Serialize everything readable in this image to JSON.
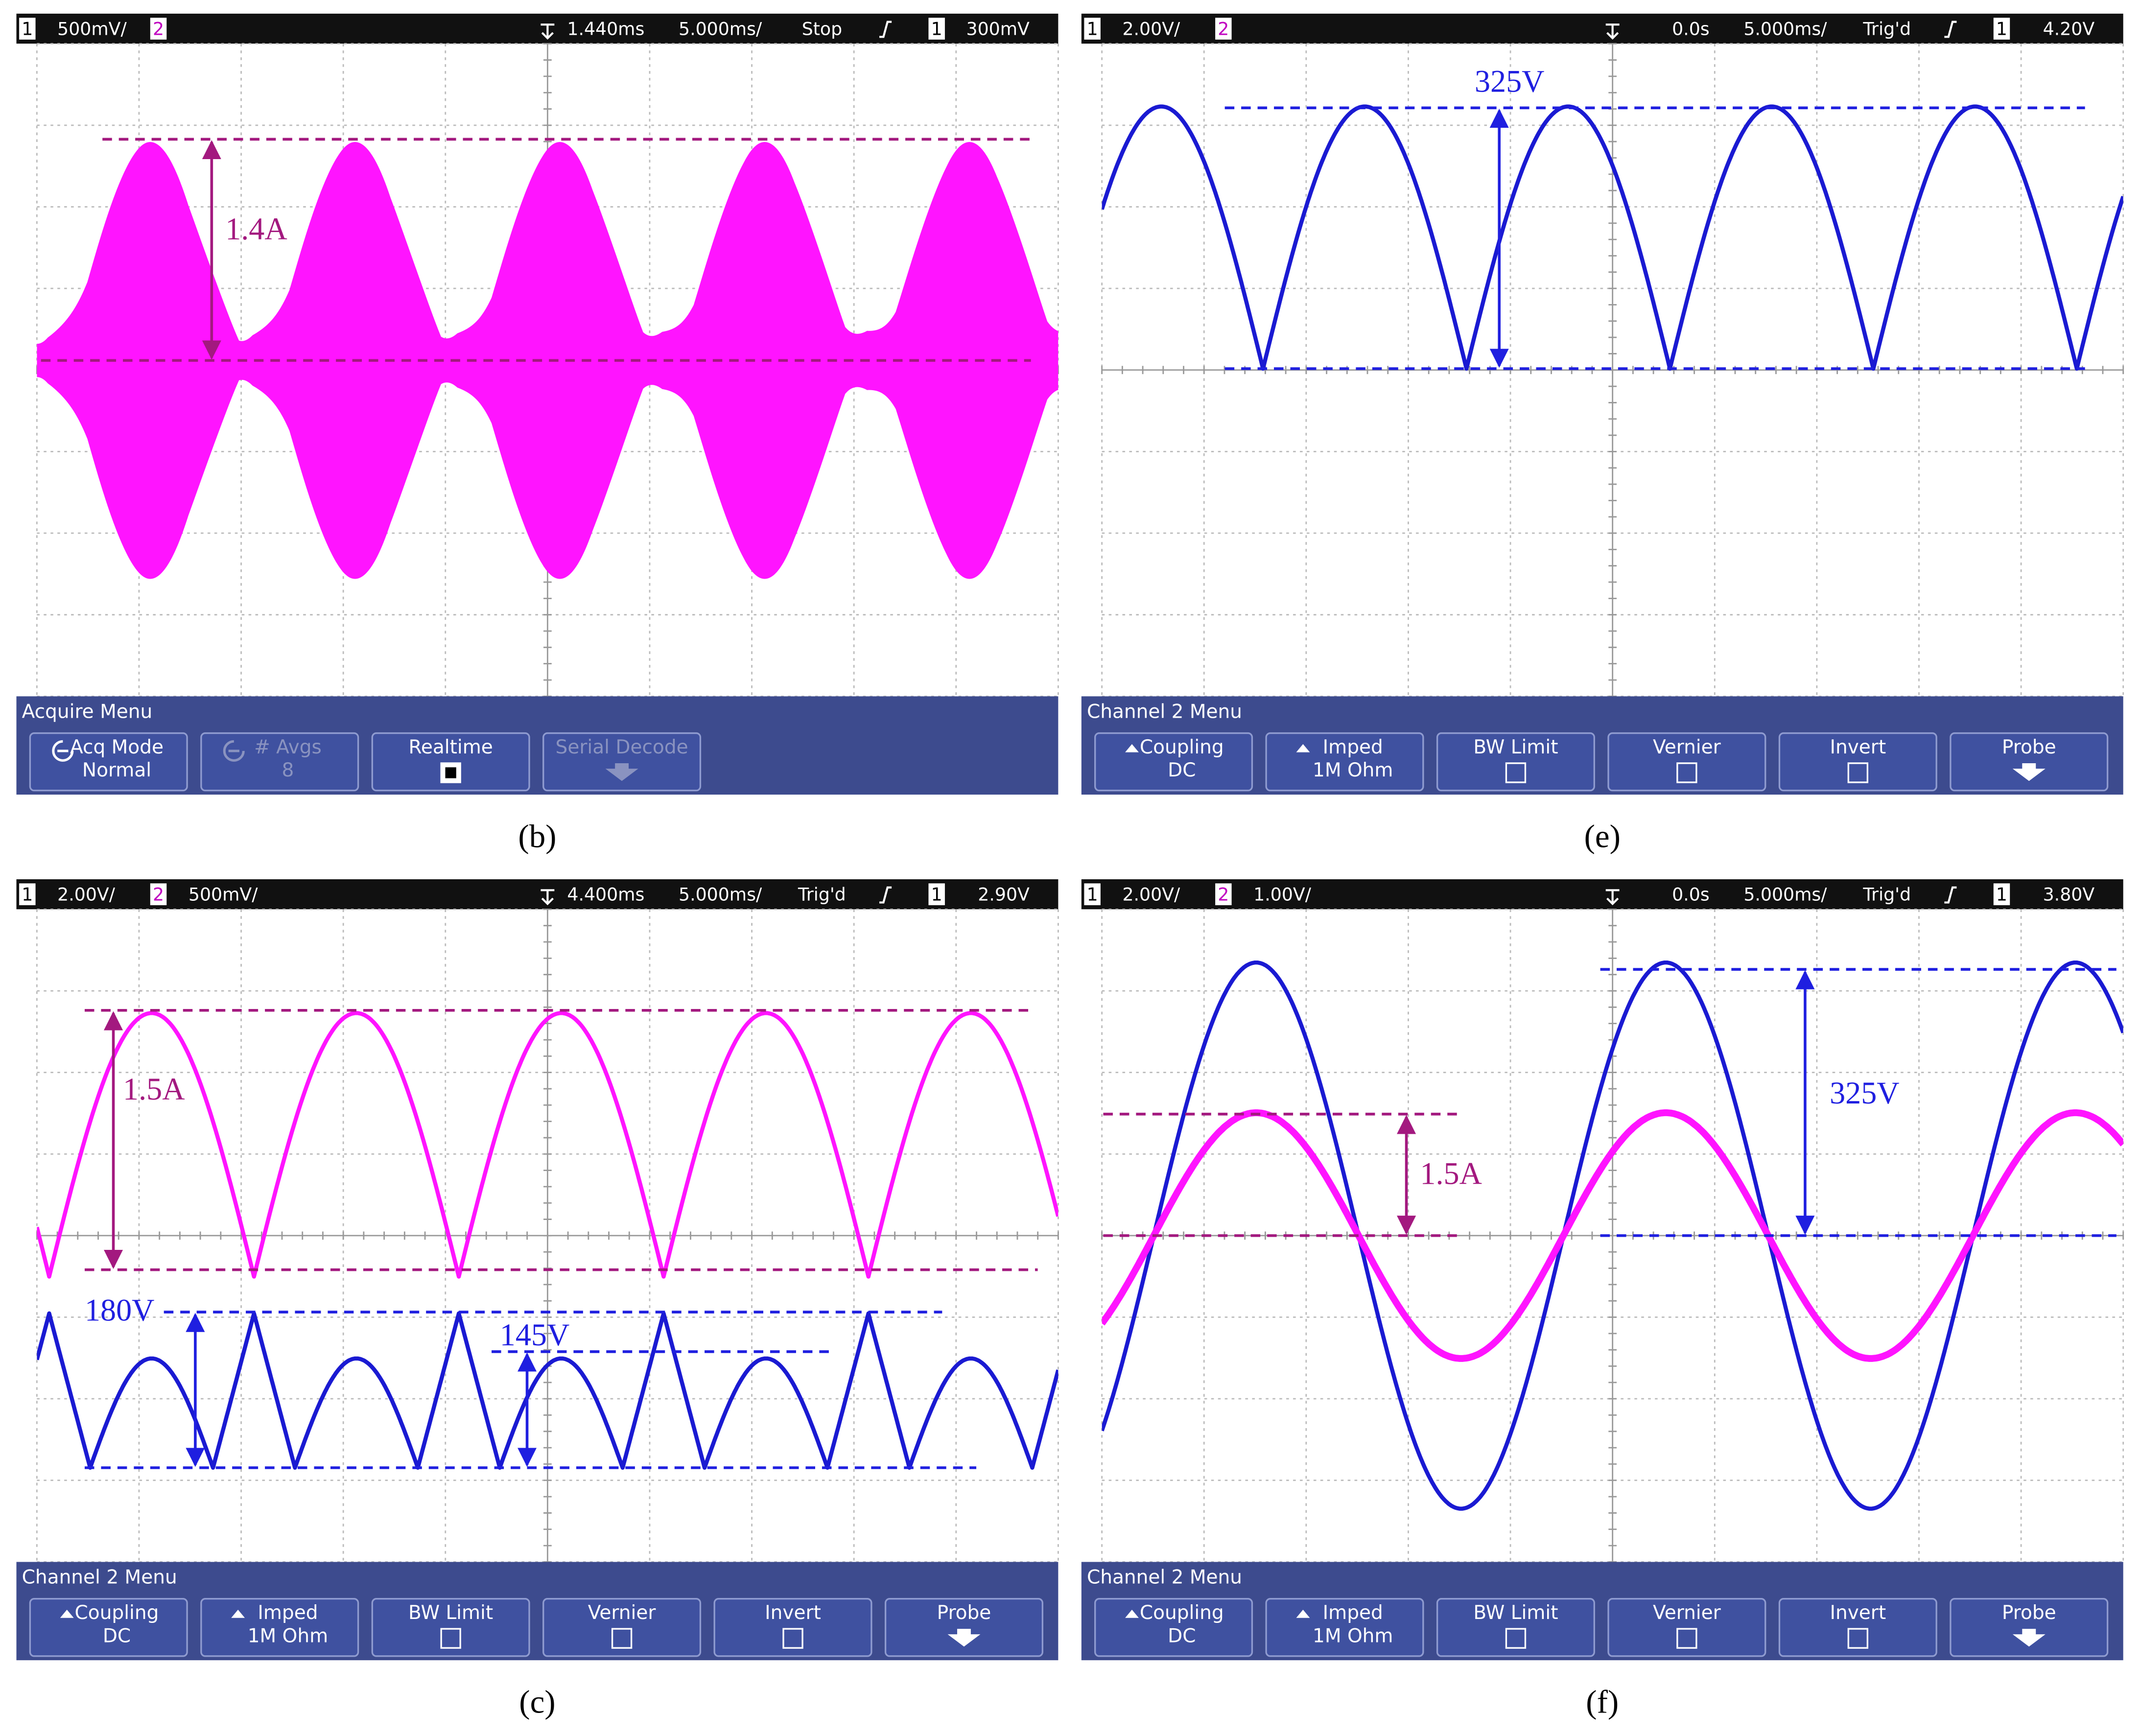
{
  "panels": [
    {
      "label": "(b)",
      "header": {
        "ch1": "1",
        "ch1_scale": "500mV/",
        "ch2": "2",
        "delay": "1.440ms",
        "timebase": "5.000ms/",
        "status": "Stop",
        "trig_ch": "1",
        "trig_level": "300mV"
      },
      "menu": {
        "title": "Acquire Menu",
        "buttons": [
          {
            "label": "Acq Mode",
            "value": "Normal",
            "icon": "cycle"
          },
          {
            "label": "# Avgs",
            "value": "8",
            "icon": "cycle",
            "disabled": true
          },
          {
            "label": "Realtime",
            "icon": "checked"
          },
          {
            "label": "Serial Decode",
            "icon": "arrow",
            "disabled": true
          }
        ]
      },
      "annotations": [
        {
          "text": "1.4A",
          "color": "#a3197f"
        }
      ]
    },
    {
      "label": "(e)",
      "header": {
        "ch1": "1",
        "ch1_scale": "2.00V/",
        "ch2": "2",
        "delay": "0.0s",
        "timebase": "5.000ms/",
        "status": "Trig'd",
        "trig_ch": "1",
        "trig_level": "4.20V"
      },
      "menu": {
        "title": "Channel 2  Menu",
        "buttons": [
          {
            "label": "Coupling",
            "value": "DC",
            "icon": "up"
          },
          {
            "label": "Imped",
            "value": "1M Ohm",
            "icon": "up"
          },
          {
            "label": "BW Limit",
            "icon": "checkbox"
          },
          {
            "label": "Vernier",
            "icon": "checkbox"
          },
          {
            "label": "Invert",
            "icon": "checkbox"
          },
          {
            "label": "Probe",
            "icon": "arrow"
          }
        ]
      },
      "annotations": [
        {
          "text": "325V",
          "color": "#1f1fe0"
        }
      ]
    },
    {
      "label": "(c)",
      "header": {
        "ch1": "1",
        "ch1_scale": "2.00V/",
        "ch2": "2",
        "ch2_scale": "500mV/",
        "delay": "4.400ms",
        "timebase": "5.000ms/",
        "status": "Trig'd",
        "trig_ch": "1",
        "trig_level": "2.90V"
      },
      "menu": {
        "title": "Channel 2  Menu",
        "buttons": [
          {
            "label": "Coupling",
            "value": "DC",
            "icon": "up"
          },
          {
            "label": "Imped",
            "value": "1M Ohm",
            "icon": "up"
          },
          {
            "label": "BW Limit",
            "icon": "checkbox"
          },
          {
            "label": "Vernier",
            "icon": "checkbox"
          },
          {
            "label": "Invert",
            "icon": "checkbox"
          },
          {
            "label": "Probe",
            "icon": "arrow"
          }
        ]
      },
      "annotations": [
        {
          "text": "1.5A",
          "color": "#a3197f"
        },
        {
          "text": "180V",
          "color": "#1f1fe0"
        },
        {
          "text": "145V",
          "color": "#1f1fe0"
        }
      ]
    },
    {
      "label": "(f)",
      "header": {
        "ch1": "1",
        "ch1_scale": "2.00V/",
        "ch2": "2",
        "ch2_scale": "1.00V/",
        "delay": "0.0s",
        "timebase": "5.000ms/",
        "status": "Trig'd",
        "trig_ch": "1",
        "trig_level": "3.80V"
      },
      "menu": {
        "title": "Channel 2  Menu",
        "buttons": [
          {
            "label": "Coupling",
            "value": "DC",
            "icon": "up"
          },
          {
            "label": "Imped",
            "value": "1M Ohm",
            "icon": "up"
          },
          {
            "label": "BW Limit",
            "icon": "checkbox"
          },
          {
            "label": "Vernier",
            "icon": "checkbox"
          },
          {
            "label": "Invert",
            "icon": "checkbox"
          },
          {
            "label": "Probe",
            "icon": "arrow"
          }
        ]
      },
      "annotations": [
        {
          "text": "1.5A",
          "color": "#a3197f"
        },
        {
          "text": "325V",
          "color": "#1f1fe0"
        }
      ]
    }
  ]
}
